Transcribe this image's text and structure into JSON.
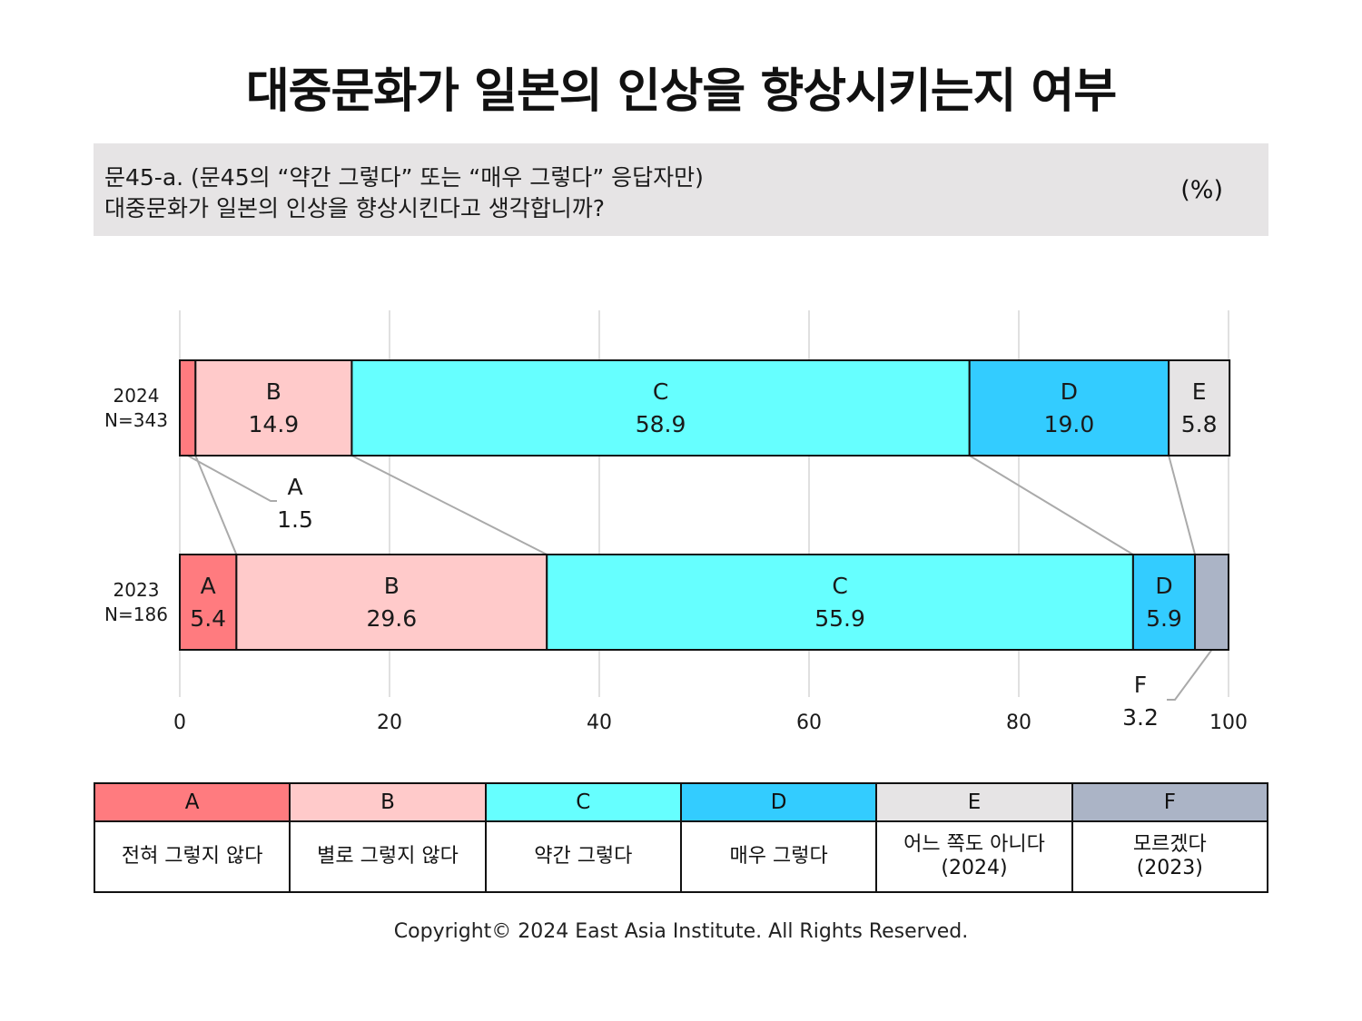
{
  "title": "대중문화가 일본의 인상을 향상시키는지 여부",
  "question": {
    "line1": "문45-a. (문45의 “약간 그렇다” 또는 “매우 그렇다” 응답자만)",
    "line2": "대중문화가 일본의 인상을 향상시킨다고 생각합니까?",
    "unit": "(%)"
  },
  "chart_data": {
    "type": "bar",
    "stacked": true,
    "orientation": "horizontal",
    "xlim": [
      0,
      100
    ],
    "xticks": [
      "0",
      "20",
      "40",
      "60",
      "80",
      "100"
    ],
    "grid": true,
    "rows": [
      {
        "year": "2024",
        "n": "N=343",
        "segments": [
          {
            "key": "A",
            "value": 1.5,
            "label": "1.5",
            "color": "#ff7b7f"
          },
          {
            "key": "B",
            "value": 14.9,
            "label": "14.9",
            "color": "#ffcaca"
          },
          {
            "key": "C",
            "value": 58.9,
            "label": "58.9",
            "color": "#66ffff"
          },
          {
            "key": "D",
            "value": 19.0,
            "label": "19.0",
            "color": "#33ccff"
          },
          {
            "key": "E",
            "value": 5.8,
            "label": "5.8",
            "color": "#e6e4e5"
          }
        ]
      },
      {
        "year": "2023",
        "n": "N=186",
        "segments": [
          {
            "key": "A",
            "value": 5.4,
            "label": "5.4",
            "color": "#ff7b7f"
          },
          {
            "key": "B",
            "value": 29.6,
            "label": "29.6",
            "color": "#ffcaca"
          },
          {
            "key": "C",
            "value": 55.9,
            "label": "55.9",
            "color": "#66ffff"
          },
          {
            "key": "D",
            "value": 5.9,
            "label": "5.9",
            "color": "#33ccff"
          },
          {
            "key": "F",
            "value": 3.2,
            "label": "3.2",
            "color": "#abb4c6"
          }
        ]
      }
    ]
  },
  "legend": [
    {
      "key": "A",
      "desc": "전혀 그렇지 않다",
      "color": "#ff7b7f"
    },
    {
      "key": "B",
      "desc": "별로 그렇지 않다",
      "color": "#ffcaca"
    },
    {
      "key": "C",
      "desc": "약간 그렇다",
      "color": "#66ffff"
    },
    {
      "key": "D",
      "desc": "매우 그렇다",
      "color": "#33ccff"
    },
    {
      "key": "E",
      "desc": "어느 쪽도 아니다\n(2024)",
      "color": "#e6e4e5"
    },
    {
      "key": "F",
      "desc": "모르겠다\n(2023)",
      "color": "#abb4c6"
    }
  ],
  "copyright": "Copyright© 2024 East Asia Institute. All Rights Reserved."
}
